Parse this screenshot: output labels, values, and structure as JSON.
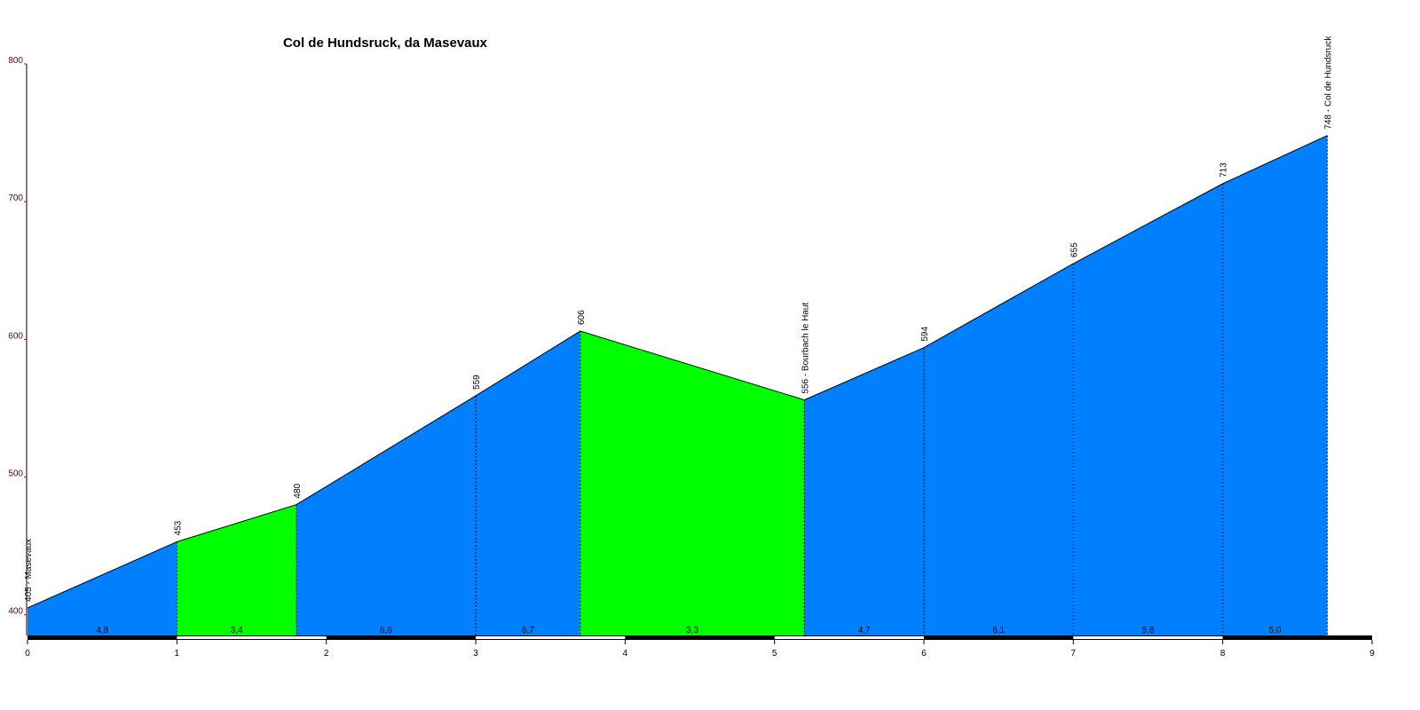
{
  "chart_data": {
    "type": "area",
    "title": "Col de Hundsruck, da Masevaux",
    "x": [
      0,
      1,
      1.8,
      3,
      3.7,
      5.2,
      6,
      7,
      8,
      8.7
    ],
    "values": [
      405,
      453,
      480,
      559,
      606,
      556,
      594,
      655,
      713,
      748
    ],
    "value_labels": [
      "405 - Masevaux",
      "453",
      "480",
      "559",
      "606",
      "556 - Bourbach le Haut",
      "594",
      "655",
      "713",
      "748 - Col de Hundsruck"
    ],
    "segments": {
      "values": [
        4.8,
        3.4,
        6.6,
        6.7,
        3.3,
        4.7,
        6.1,
        5.8,
        5.0
      ],
      "value_labels": [
        "4,8",
        "3,4",
        "6,6",
        "6,7",
        "3,3",
        "4,7",
        "6,1",
        "5,8",
        "5,0"
      ],
      "colors": [
        "#0080ff",
        "#00ff00",
        "#0080ff",
        "#0080ff",
        "#00ff00",
        "#0080ff",
        "#0080ff",
        "#0080ff",
        "#0080ff"
      ]
    },
    "xlim": [
      0,
      9
    ],
    "xticks": [
      0,
      1,
      2,
      3,
      4,
      5,
      6,
      7,
      8,
      9
    ],
    "ylim": [
      385,
      800
    ],
    "yticks": [
      400,
      500,
      600,
      700,
      800
    ]
  }
}
